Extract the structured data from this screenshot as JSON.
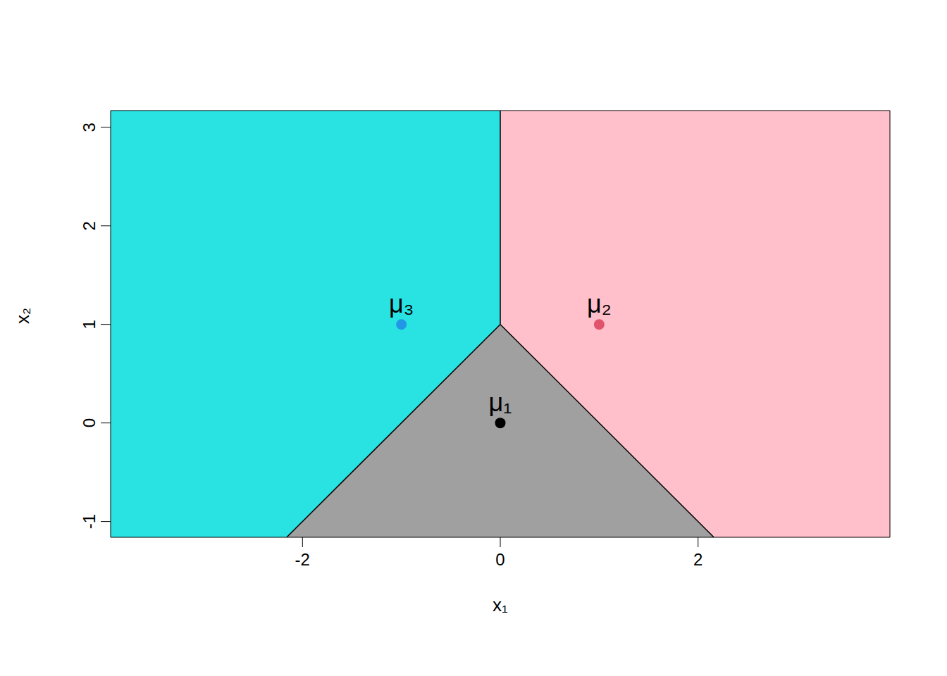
{
  "chart_data": {
    "type": "scatter",
    "xlabel": "x₁",
    "ylabel": "x₂",
    "xlim": [
      -3.94,
      3.94
    ],
    "ylim": [
      -1.16,
      3.17
    ],
    "xticks": [
      -2,
      0,
      2
    ],
    "yticks": [
      -1,
      0,
      1,
      2,
      3
    ],
    "grid": false,
    "regions": [
      {
        "color": "#29e3e3",
        "x": [
          -3.94,
          -2.16,
          0
        ],
        "low": [
          -1.16,
          -1.16,
          1
        ],
        "high": [
          3.17,
          3.17,
          3.17
        ]
      },
      {
        "color": "#a0a0a0",
        "x": [
          -2.16,
          0,
          2.16
        ],
        "low": [
          -1.16,
          -1.16,
          -1.16
        ],
        "high": [
          -1.16,
          1,
          -1.16
        ]
      },
      {
        "color": "#ffc0cb",
        "x": [
          0,
          2.16,
          3.94
        ],
        "low": [
          1,
          -1.16,
          -1.16
        ],
        "high": [
          3.17,
          3.17,
          3.17
        ]
      }
    ],
    "boundaries": [
      {
        "x": [
          0,
          0
        ],
        "y": [
          1,
          3.17
        ]
      },
      {
        "x": [
          0,
          -2.16
        ],
        "y": [
          1,
          -1.16
        ]
      },
      {
        "x": [
          0,
          2.16
        ],
        "y": [
          1,
          -1.16
        ]
      }
    ],
    "points": {
      "x": [
        0,
        1,
        -1
      ],
      "y": [
        0,
        1,
        1
      ],
      "labels": [
        "μ₁",
        "μ₂",
        "μ₃"
      ],
      "colors": [
        "#000000",
        "#df536b",
        "#2297e6"
      ]
    }
  }
}
